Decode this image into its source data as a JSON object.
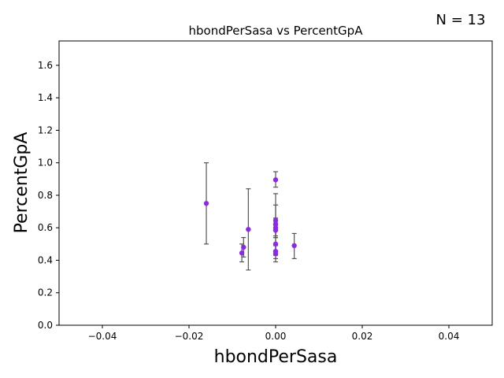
{
  "chart_data": {
    "type": "scatter",
    "title": "hbondPerSasa vs PercentGpA",
    "annotation": "N = 13",
    "xlabel": "hbondPerSasa",
    "ylabel": "PercentGpA",
    "xlim": [
      -0.05,
      0.05
    ],
    "ylim": [
      0.0,
      1.75
    ],
    "xticks": [
      -0.04,
      -0.02,
      0.0,
      0.02,
      0.04
    ],
    "xtick_labels": [
      "−0.04",
      "−0.02",
      "0.00",
      "0.02",
      "0.04"
    ],
    "yticks": [
      0.0,
      0.2,
      0.4,
      0.6,
      0.8,
      1.0,
      1.2,
      1.4,
      1.6
    ],
    "ytick_labels": [
      "0.0",
      "0.2",
      "0.4",
      "0.6",
      "0.8",
      "1.0",
      "1.2",
      "1.4",
      "1.6"
    ],
    "grid": false,
    "colors": {
      "point": "#8a2be2",
      "errorbar": "#555555"
    },
    "points": [
      {
        "x": -0.016,
        "y": 0.75,
        "err_low": 0.5,
        "err_high": 1.0
      },
      {
        "x": -0.0078,
        "y": 0.445,
        "err_low": 0.39,
        "err_high": 0.5
      },
      {
        "x": -0.0074,
        "y": 0.48,
        "err_low": 0.42,
        "err_high": 0.54
      },
      {
        "x": -0.0063,
        "y": 0.59,
        "err_low": 0.34,
        "err_high": 0.84
      },
      {
        "x": 0.0,
        "y": 0.895,
        "err_low": 0.85,
        "err_high": 0.945
      },
      {
        "x": 0.0,
        "y": 0.645,
        "err_low": 0.55,
        "err_high": 0.74
      },
      {
        "x": 0.0,
        "y": 0.62,
        "err_low": 0.43,
        "err_high": 0.81
      },
      {
        "x": 0.0,
        "y": 0.6,
        "err_low": 0.54,
        "err_high": 0.66
      },
      {
        "x": 0.0,
        "y": 0.585,
        "err_low": 0.54,
        "err_high": 0.63
      },
      {
        "x": 0.0,
        "y": 0.5,
        "err_low": 0.46,
        "err_high": 0.54
      },
      {
        "x": 0.0,
        "y": 0.455,
        "err_low": 0.41,
        "err_high": 0.5
      },
      {
        "x": 0.0,
        "y": 0.44,
        "err_low": 0.39,
        "err_high": 0.49
      },
      {
        "x": 0.0043,
        "y": 0.49,
        "err_low": 0.41,
        "err_high": 0.565
      }
    ]
  }
}
